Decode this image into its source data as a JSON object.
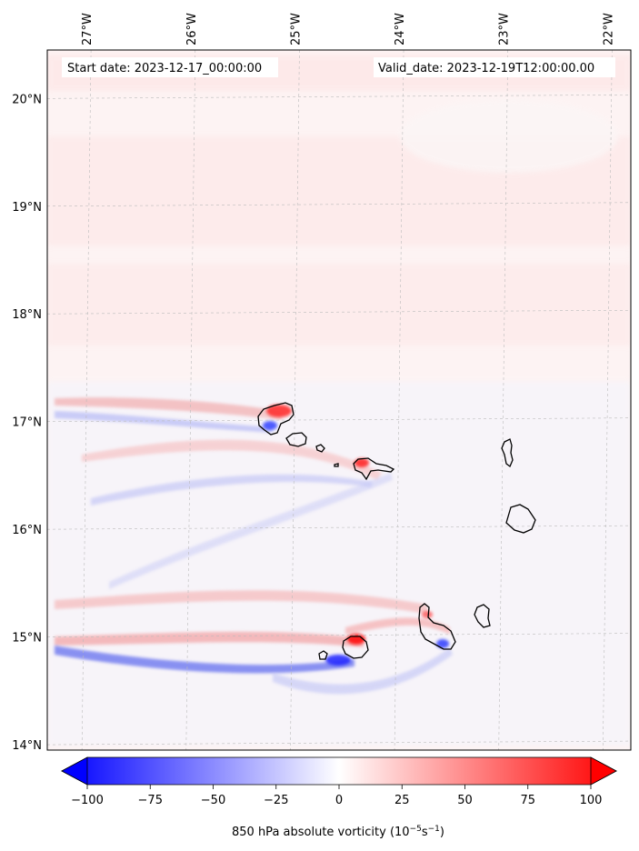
{
  "map": {
    "start_label": "Start date: 2023-12-17_00:00:00",
    "valid_label": "Valid_date: 2023-12-19T12:00:00.00",
    "lon_labels": [
      "27°W",
      "26°W",
      "25°W",
      "24°W",
      "23°W",
      "22°W"
    ],
    "lat_labels": [
      "20°N",
      "19°N",
      "18°N",
      "17°N",
      "16°N",
      "15°N",
      "14°N"
    ],
    "lon_range": [
      -27.35,
      -21.75
    ],
    "lat_range": [
      13.95,
      20.45
    ]
  },
  "colorbar": {
    "ticks": [
      "−100",
      "−75",
      "−50",
      "−25",
      "0",
      "25",
      "50",
      "75",
      "100"
    ],
    "tick_values": [
      -100,
      -75,
      -50,
      -25,
      0,
      25,
      50,
      75,
      100
    ],
    "range": [
      -100,
      100
    ],
    "label_main": "850 hPa absolute vorticity (10",
    "label_exp1": "−5",
    "label_mid": "s",
    "label_exp2": "−1",
    "label_end": ")"
  },
  "colors": {
    "negative": "#0000ff",
    "zero": "#ffffff",
    "positive": "#ff0000",
    "background_tint": "#fdeeee",
    "coastline": "#000000",
    "gridline": "#bbbbbb"
  }
}
